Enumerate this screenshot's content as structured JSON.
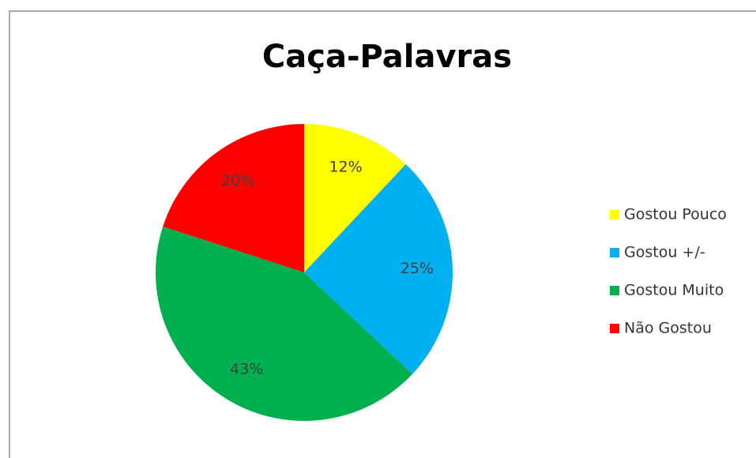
{
  "chart_data": {
    "type": "pie",
    "title": "Caça-Palavras",
    "categories": [
      "Gostou Pouco",
      "Gostou +/-",
      "Gostou Muito",
      "Não Gostou"
    ],
    "values": [
      12,
      25,
      43,
      20
    ],
    "value_labels": [
      "12%",
      "25%",
      "43%",
      "20%"
    ],
    "colors": [
      "#ffff00",
      "#00b0f0",
      "#00b050",
      "#ff0000"
    ],
    "legend": "right"
  }
}
